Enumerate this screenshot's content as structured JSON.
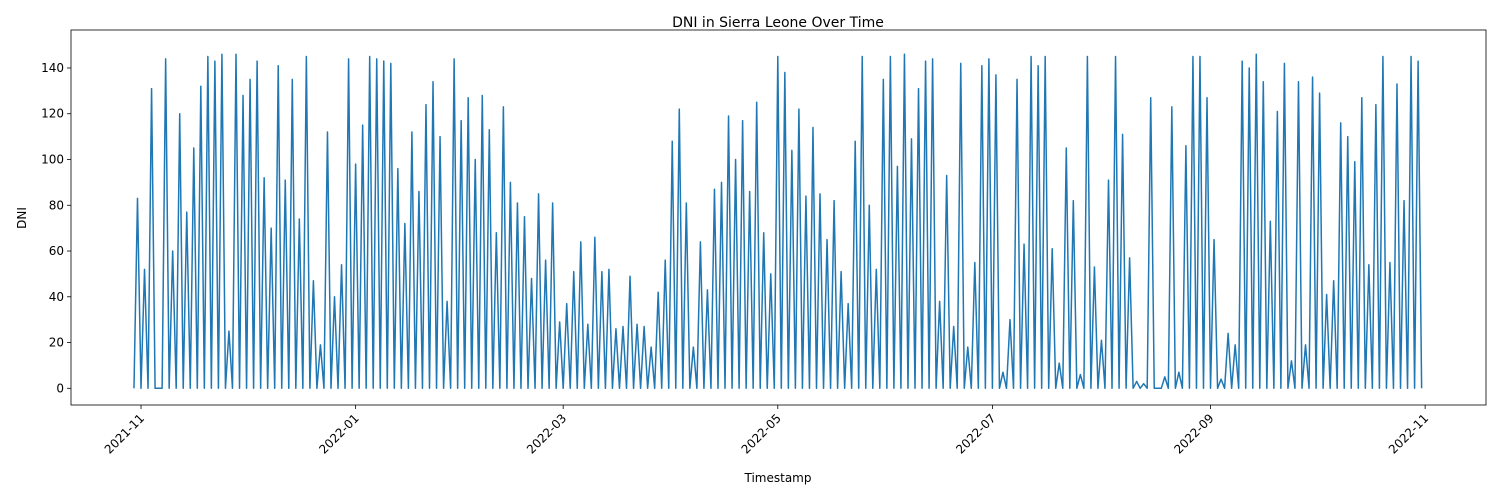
{
  "chart_data": {
    "type": "line",
    "title": "DNI in Sierra Leone Over Time",
    "x_label": "Timestamp",
    "y_label": "DNI",
    "color": "#1f77b4",
    "xlim": [
      -19.9,
      382.3
    ],
    "ylim": [
      -7.3,
      156.6
    ],
    "xticks": [
      {
        "value": 0,
        "label": "2021-11"
      },
      {
        "value": 61,
        "label": "2022-01"
      },
      {
        "value": 120,
        "label": "2022-03"
      },
      {
        "value": 181,
        "label": "2022-05"
      },
      {
        "value": 242,
        "label": "2022-07"
      },
      {
        "value": 304,
        "label": "2022-09"
      },
      {
        "value": 365,
        "label": "2022-11"
      }
    ],
    "yticks": [
      0,
      20,
      40,
      60,
      80,
      100,
      120,
      140
    ],
    "x": [
      -2,
      -1,
      0,
      1,
      2,
      3,
      4,
      5,
      6,
      7,
      8,
      9,
      10,
      11,
      12,
      13,
      14,
      15,
      16,
      17,
      18,
      19,
      20,
      21,
      22,
      23,
      24,
      25,
      26,
      27,
      28,
      29,
      30,
      31,
      32,
      33,
      34,
      35,
      36,
      37,
      38,
      39,
      40,
      41,
      42,
      43,
      44,
      45,
      46,
      47,
      48,
      49,
      50,
      51,
      52,
      53,
      54,
      55,
      56,
      57,
      58,
      59,
      60,
      61,
      62,
      63,
      64,
      65,
      66,
      67,
      68,
      69,
      70,
      71,
      72,
      73,
      74,
      75,
      76,
      77,
      78,
      79,
      80,
      81,
      82,
      83,
      84,
      85,
      86,
      87,
      88,
      89,
      90,
      91,
      92,
      93,
      94,
      95,
      96,
      97,
      98,
      99,
      100,
      101,
      102,
      103,
      104,
      105,
      106,
      107,
      108,
      109,
      110,
      111,
      112,
      113,
      114,
      115,
      116,
      117,
      118,
      119,
      120,
      121,
      122,
      123,
      124,
      125,
      126,
      127,
      128,
      129,
      130,
      131,
      132,
      133,
      134,
      135,
      136,
      137,
      138,
      139,
      140,
      141,
      142,
      143,
      144,
      145,
      146,
      147,
      148,
      149,
      150,
      151,
      152,
      153,
      154,
      155,
      156,
      157,
      158,
      159,
      160,
      161,
      162,
      163,
      164,
      165,
      166,
      167,
      168,
      169,
      170,
      171,
      172,
      173,
      174,
      175,
      176,
      177,
      178,
      179,
      180,
      181,
      182,
      183,
      184,
      185,
      186,
      187,
      188,
      189,
      190,
      191,
      192,
      193,
      194,
      195,
      196,
      197,
      198,
      199,
      200,
      201,
      202,
      203,
      204,
      205,
      206,
      207,
      208,
      209,
      210,
      211,
      212,
      213,
      214,
      215,
      216,
      217,
      218,
      219,
      220,
      221,
      222,
      223,
      224,
      225,
      226,
      227,
      228,
      229,
      230,
      231,
      232,
      233,
      234,
      235,
      236,
      237,
      238,
      239,
      240,
      241,
      242,
      243,
      244,
      245,
      246,
      247,
      248,
      249,
      250,
      251,
      252,
      253,
      254,
      255,
      256,
      257,
      258,
      259,
      260,
      261,
      262,
      263,
      264,
      265,
      266,
      267,
      268,
      269,
      270,
      271,
      272,
      273,
      274,
      275,
      276,
      277,
      278,
      279,
      280,
      281,
      282,
      283,
      284,
      285,
      286,
      287,
      288,
      289,
      290,
      291,
      292,
      293,
      294,
      295,
      296,
      297,
      298,
      299,
      300,
      301,
      302,
      303,
      304,
      305,
      306,
      307,
      308,
      309,
      310,
      311,
      312,
      313,
      314,
      315,
      316,
      317,
      318,
      319,
      320,
      321,
      322,
      323,
      324,
      325,
      326,
      327,
      328,
      329,
      330,
      331,
      332,
      333,
      334,
      335,
      336,
      337,
      338,
      339,
      340,
      341,
      342,
      343,
      344,
      345,
      346,
      347,
      348,
      349,
      350,
      351,
      352,
      353,
      354,
      355,
      356,
      357,
      358,
      359,
      360,
      361,
      362,
      363,
      364
    ],
    "values": [
      0,
      83,
      0,
      52,
      0,
      131,
      0,
      0,
      0,
      144,
      0,
      60,
      0,
      120,
      0,
      77,
      0,
      105,
      0,
      132,
      0,
      145,
      0,
      143,
      0,
      146,
      0,
      25,
      0,
      146,
      0,
      128,
      0,
      135,
      0,
      143,
      0,
      92,
      0,
      70,
      0,
      141,
      0,
      91,
      0,
      135,
      0,
      74,
      0,
      145,
      0,
      47,
      0,
      19,
      0,
      112,
      0,
      40,
      0,
      54,
      0,
      144,
      0,
      98,
      0,
      115,
      0,
      145,
      0,
      144,
      0,
      143,
      0,
      142,
      0,
      96,
      0,
      72,
      0,
      112,
      0,
      86,
      0,
      124,
      0,
      134,
      0,
      110,
      0,
      38,
      0,
      144,
      0,
      117,
      0,
      127,
      0,
      100,
      0,
      128,
      0,
      113,
      0,
      68,
      0,
      123,
      0,
      90,
      0,
      81,
      0,
      75,
      0,
      48,
      0,
      85,
      0,
      56,
      0,
      81,
      0,
      29,
      0,
      37,
      0,
      51,
      0,
      64,
      0,
      28,
      0,
      66,
      0,
      51,
      0,
      52,
      0,
      26,
      0,
      27,
      0,
      49,
      0,
      28,
      0,
      27,
      0,
      18,
      0,
      42,
      0,
      56,
      0,
      108,
      0,
      122,
      0,
      81,
      0,
      18,
      0,
      64,
      0,
      43,
      0,
      87,
      0,
      90,
      0,
      119,
      0,
      100,
      0,
      117,
      0,
      86,
      0,
      125,
      0,
      68,
      0,
      50,
      0,
      145,
      0,
      138,
      0,
      104,
      0,
      122,
      0,
      84,
      0,
      114,
      0,
      85,
      0,
      65,
      0,
      82,
      0,
      51,
      0,
      37,
      0,
      108,
      0,
      145,
      0,
      80,
      0,
      52,
      0,
      135,
      0,
      145,
      0,
      97,
      0,
      146,
      0,
      109,
      0,
      131,
      0,
      143,
      0,
      144,
      0,
      38,
      0,
      93,
      0,
      27,
      0,
      142,
      0,
      18,
      0,
      55,
      0,
      141,
      0,
      144,
      0,
      137,
      0,
      7,
      0,
      30,
      0,
      135,
      0,
      63,
      0,
      145,
      0,
      141,
      0,
      145,
      0,
      61,
      0,
      11,
      0,
      105,
      0,
      82,
      0,
      6,
      0,
      145,
      0,
      53,
      0,
      21,
      0,
      91,
      0,
      145,
      0,
      111,
      0,
      57,
      0,
      3,
      0,
      2,
      0,
      127,
      0,
      0,
      0,
      5,
      0,
      123,
      0,
      7,
      0,
      106,
      0,
      145,
      0,
      145,
      0,
      127,
      0,
      65,
      0,
      4,
      0,
      24,
      0,
      19,
      0,
      143,
      0,
      140,
      0,
      146,
      0,
      134,
      0,
      73,
      0,
      121,
      0,
      142,
      0,
      12,
      0,
      134,
      0,
      19,
      0,
      136,
      0,
      129,
      0,
      41,
      0,
      47,
      0,
      116,
      0,
      110,
      0,
      99,
      0,
      127,
      0,
      54,
      0,
      124,
      0,
      145,
      0,
      55,
      0,
      133,
      0,
      82,
      0,
      145,
      0,
      143,
      0
    ]
  }
}
